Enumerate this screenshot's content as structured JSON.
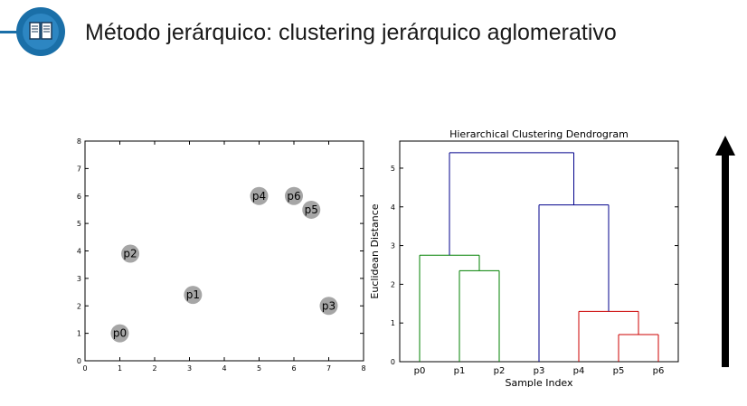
{
  "header": {
    "title": "Método jerárquico: clustering jerárquico aglomerativo",
    "logo_icon": "book-icon",
    "accent_color": "#1a6fa8"
  },
  "chart_data": [
    {
      "type": "scatter",
      "title": "",
      "xlabel": "",
      "ylabel": "",
      "xlim": [
        0,
        8
      ],
      "ylim": [
        0,
        8
      ],
      "xticks": [
        "0",
        "1",
        "2",
        "3",
        "4",
        "5",
        "6",
        "7",
        "8"
      ],
      "yticks": [
        "0",
        "1",
        "2",
        "3",
        "4",
        "5",
        "6",
        "7",
        "8"
      ],
      "marker_color": "#a6a6a6",
      "points": [
        {
          "label": "p0",
          "x": 1.0,
          "y": 1.0
        },
        {
          "label": "p1",
          "x": 3.1,
          "y": 2.4
        },
        {
          "label": "p2",
          "x": 1.3,
          "y": 3.9
        },
        {
          "label": "p3",
          "x": 7.0,
          "y": 2.0
        },
        {
          "label": "p4",
          "x": 5.0,
          "y": 6.0
        },
        {
          "label": "p5",
          "x": 6.5,
          "y": 5.5
        },
        {
          "label": "p6",
          "x": 6.0,
          "y": 6.0
        }
      ]
    },
    {
      "type": "dendrogram",
      "title": "Hierarchical Clustering Dendrogram",
      "xlabel": "Sample Index",
      "ylabel": "Euclidean Distance",
      "ylim": [
        0,
        5.7
      ],
      "yticks": [
        "0",
        "1",
        "2",
        "3",
        "4",
        "5"
      ],
      "leaves": [
        "p0",
        "p1",
        "p2",
        "p3",
        "p4",
        "p5",
        "p6"
      ],
      "links": [
        {
          "left": 1,
          "right": 2,
          "height": 2.35,
          "color": "#008000"
        },
        {
          "left": 0,
          "right": 1.5,
          "height": 2.75,
          "color": "#008000"
        },
        {
          "left": 5,
          "right": 6,
          "height": 0.7,
          "color": "#cc0000"
        },
        {
          "left": 4,
          "right": 5.5,
          "height": 1.3,
          "color": "#cc0000"
        },
        {
          "left": 3,
          "right": 4.75,
          "height": 4.05,
          "color": "#00008b"
        },
        {
          "left": 0.75,
          "right": 3.875,
          "height": 5.4,
          "color": "#00008b"
        }
      ],
      "leaf_links": [
        {
          "x": 0,
          "top": 2.75,
          "color": "#008000"
        },
        {
          "x": 1,
          "top": 2.35,
          "color": "#008000"
        },
        {
          "x": 2,
          "top": 2.35,
          "color": "#008000"
        },
        {
          "x": 3,
          "top": 4.05,
          "color": "#00008b"
        },
        {
          "x": 4,
          "top": 1.3,
          "color": "#cc0000"
        },
        {
          "x": 5,
          "top": 0.7,
          "color": "#cc0000"
        },
        {
          "x": 6,
          "top": 0.7,
          "color": "#cc0000"
        }
      ]
    }
  ]
}
